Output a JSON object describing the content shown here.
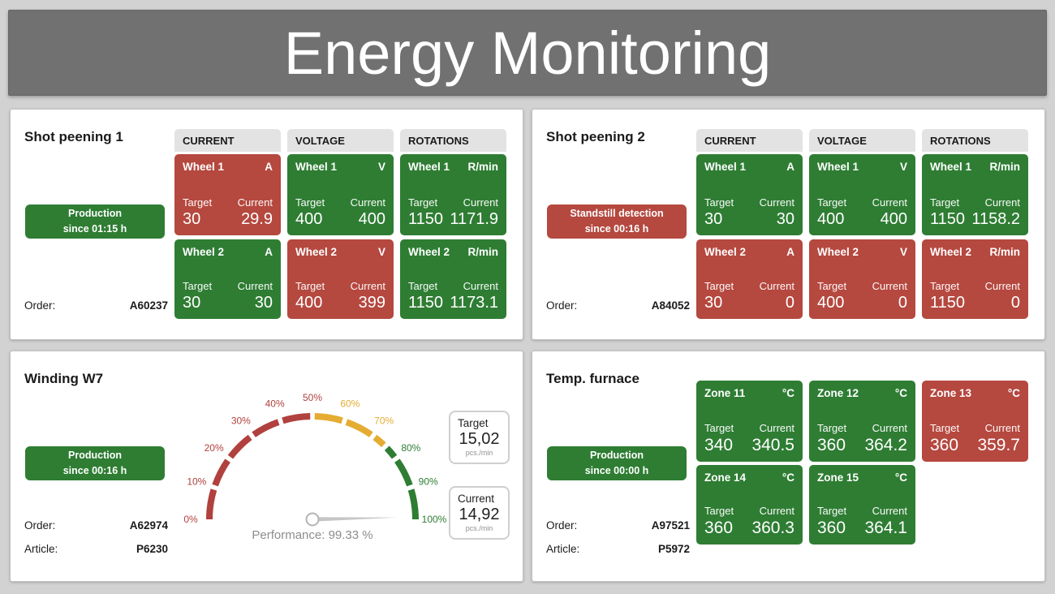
{
  "header": {
    "title": "Energy Monitoring"
  },
  "shared": {
    "target_label": "Target",
    "current_label": "Current"
  },
  "colors": {
    "ok_green": "#2e7d33",
    "alarm_red": "#b5483f",
    "warn_yellow": "#e5ac32",
    "gauge_red": "#b0413e",
    "header_gray": "#717171",
    "page_bg": "#d2d2d2"
  },
  "panels": {
    "shot1": {
      "title": "Shot peening 1",
      "status": {
        "line1": "Production",
        "line2": "since 01:15 h",
        "state": "ok"
      },
      "order_label": "Order:",
      "order_value": "A60237",
      "columns": [
        {
          "header": "CURRENT",
          "tiles": [
            {
              "name": "Wheel 1",
              "unit": "A",
              "target": "30",
              "current": "29.9",
              "state": "alarm"
            },
            {
              "name": "Wheel 2",
              "unit": "A",
              "target": "30",
              "current": "30",
              "state": "ok"
            }
          ]
        },
        {
          "header": "VOLTAGE",
          "tiles": [
            {
              "name": "Wheel 1",
              "unit": "V",
              "target": "400",
              "current": "400",
              "state": "ok"
            },
            {
              "name": "Wheel 2",
              "unit": "V",
              "target": "400",
              "current": "399",
              "state": "alarm"
            }
          ]
        },
        {
          "header": "ROTATIONS",
          "tiles": [
            {
              "name": "Wheel 1",
              "unit": "R/min",
              "target": "1150",
              "current": "1171.9",
              "state": "ok"
            },
            {
              "name": "Wheel 2",
              "unit": "R/min",
              "target": "1150",
              "current": "1173.1",
              "state": "ok"
            }
          ]
        }
      ]
    },
    "shot2": {
      "title": "Shot peening 2",
      "status": {
        "line1": "Standstill detection",
        "line2": "since 00:16 h",
        "state": "alarm"
      },
      "order_label": "Order:",
      "order_value": "A84052",
      "columns": [
        {
          "header": "CURRENT",
          "tiles": [
            {
              "name": "Wheel 1",
              "unit": "A",
              "target": "30",
              "current": "30",
              "state": "ok"
            },
            {
              "name": "Wheel 2",
              "unit": "A",
              "target": "30",
              "current": "0",
              "state": "alarm"
            }
          ]
        },
        {
          "header": "VOLTAGE",
          "tiles": [
            {
              "name": "Wheel 1",
              "unit": "V",
              "target": "400",
              "current": "400",
              "state": "ok"
            },
            {
              "name": "Wheel 2",
              "unit": "V",
              "target": "400",
              "current": "0",
              "state": "alarm"
            }
          ]
        },
        {
          "header": "ROTATIONS",
          "tiles": [
            {
              "name": "Wheel 1",
              "unit": "R/min",
              "target": "1150",
              "current": "1158.2",
              "state": "ok"
            },
            {
              "name": "Wheel 2",
              "unit": "R/min",
              "target": "1150",
              "current": "0",
              "state": "alarm"
            }
          ]
        }
      ]
    },
    "winding": {
      "title": "Winding W7",
      "status": {
        "line1": "Production",
        "line2": "since 00:16 h",
        "state": "ok"
      },
      "order_label": "Order:",
      "order_value": "A62974",
      "article_label": "Article:",
      "article_value": "P6230",
      "target_box": {
        "label": "Target",
        "value": "15,02",
        "unit": "pcs./min"
      },
      "current_box": {
        "label": "Current",
        "value": "14,92",
        "unit": "pcs./min"
      }
    },
    "furnace": {
      "title": "Temp. furnace",
      "status": {
        "line1": "Production",
        "line2": "since 00:00 h",
        "state": "ok"
      },
      "order_label": "Order:",
      "order_value": "A97521",
      "article_label": "Article:",
      "article_value": "P5972",
      "tiles": [
        {
          "name": "Zone 11",
          "unit": "°C",
          "target": "340",
          "current": "340.5",
          "state": "ok"
        },
        {
          "name": "Zone 12",
          "unit": "°C",
          "target": "360",
          "current": "364.2",
          "state": "ok"
        },
        {
          "name": "Zone 13",
          "unit": "°C",
          "target": "360",
          "current": "359.7",
          "state": "alarm"
        },
        {
          "name": "Zone 14",
          "unit": "°C",
          "target": "360",
          "current": "360.3",
          "state": "ok"
        },
        {
          "name": "Zone 15",
          "unit": "°C",
          "target": "360",
          "current": "364.1",
          "state": "ok"
        }
      ]
    }
  },
  "chart_data": {
    "type": "gauge",
    "min": 0,
    "max": 100,
    "unit": "%",
    "value": 99.33,
    "caption": "Performance: 99.33 %",
    "tick_step_percent": 10,
    "tick_labels": [
      "0%",
      "10%",
      "20%",
      "30%",
      "40%",
      "50%",
      "60%",
      "70%",
      "80%",
      "90%",
      "100%"
    ],
    "segments": [
      {
        "from": 0,
        "to": 50,
        "color": "#b0413e"
      },
      {
        "from": 50,
        "to": 75,
        "color": "#e5ac32"
      },
      {
        "from": 75,
        "to": 100,
        "color": "#2e7d33"
      }
    ]
  }
}
